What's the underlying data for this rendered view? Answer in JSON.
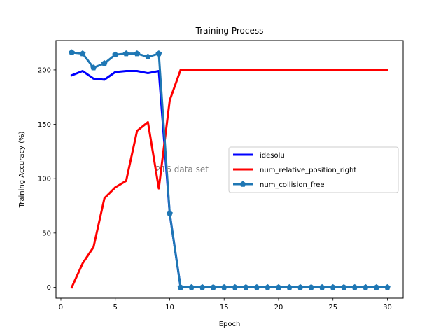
{
  "chart_data": {
    "type": "line",
    "title": "Training Process",
    "xlabel": "Epoch",
    "ylabel": "Training Accuracy (%)",
    "xlim": [
      -0.45,
      31.45
    ],
    "ylim": [
      -10,
      227
    ],
    "xticks": [
      0,
      5,
      10,
      15,
      20,
      25,
      30
    ],
    "yticks": [
      0,
      50,
      100,
      150,
      200
    ],
    "grid": false,
    "legend_placement": "center-right",
    "annotation": "216 data set",
    "x": [
      1,
      2,
      3,
      4,
      5,
      6,
      7,
      8,
      9,
      10,
      11,
      12,
      13,
      14,
      15,
      16,
      17,
      18,
      19,
      20,
      21,
      22,
      23,
      24,
      25,
      26,
      27,
      28,
      29,
      30
    ],
    "series": [
      {
        "name": "idesolu",
        "color": "#0000ff",
        "marker": "none",
        "values": [
          195,
          199,
          192,
          191,
          198,
          199,
          199,
          197,
          199,
          68,
          0,
          0,
          0,
          0,
          0,
          0,
          0,
          0,
          0,
          0,
          0,
          0,
          0,
          0,
          0,
          0,
          0,
          0,
          0,
          0
        ]
      },
      {
        "name": "num_relative_position_right",
        "color": "#ff0000",
        "marker": "none",
        "values": [
          0,
          22,
          37,
          82,
          92,
          98,
          144,
          152,
          91,
          172,
          200,
          200,
          200,
          200,
          200,
          200,
          200,
          200,
          200,
          200,
          200,
          200,
          200,
          200,
          200,
          200,
          200,
          200,
          200,
          200
        ]
      },
      {
        "name": "num_collision_free",
        "color": "#1f77b4",
        "marker": "pentagon",
        "values": [
          216,
          215,
          202,
          206,
          214,
          215,
          215,
          212,
          215,
          68,
          0,
          0,
          0,
          0,
          0,
          0,
          0,
          0,
          0,
          0,
          0,
          0,
          0,
          0,
          0,
          0,
          0,
          0,
          0,
          0
        ]
      }
    ]
  }
}
